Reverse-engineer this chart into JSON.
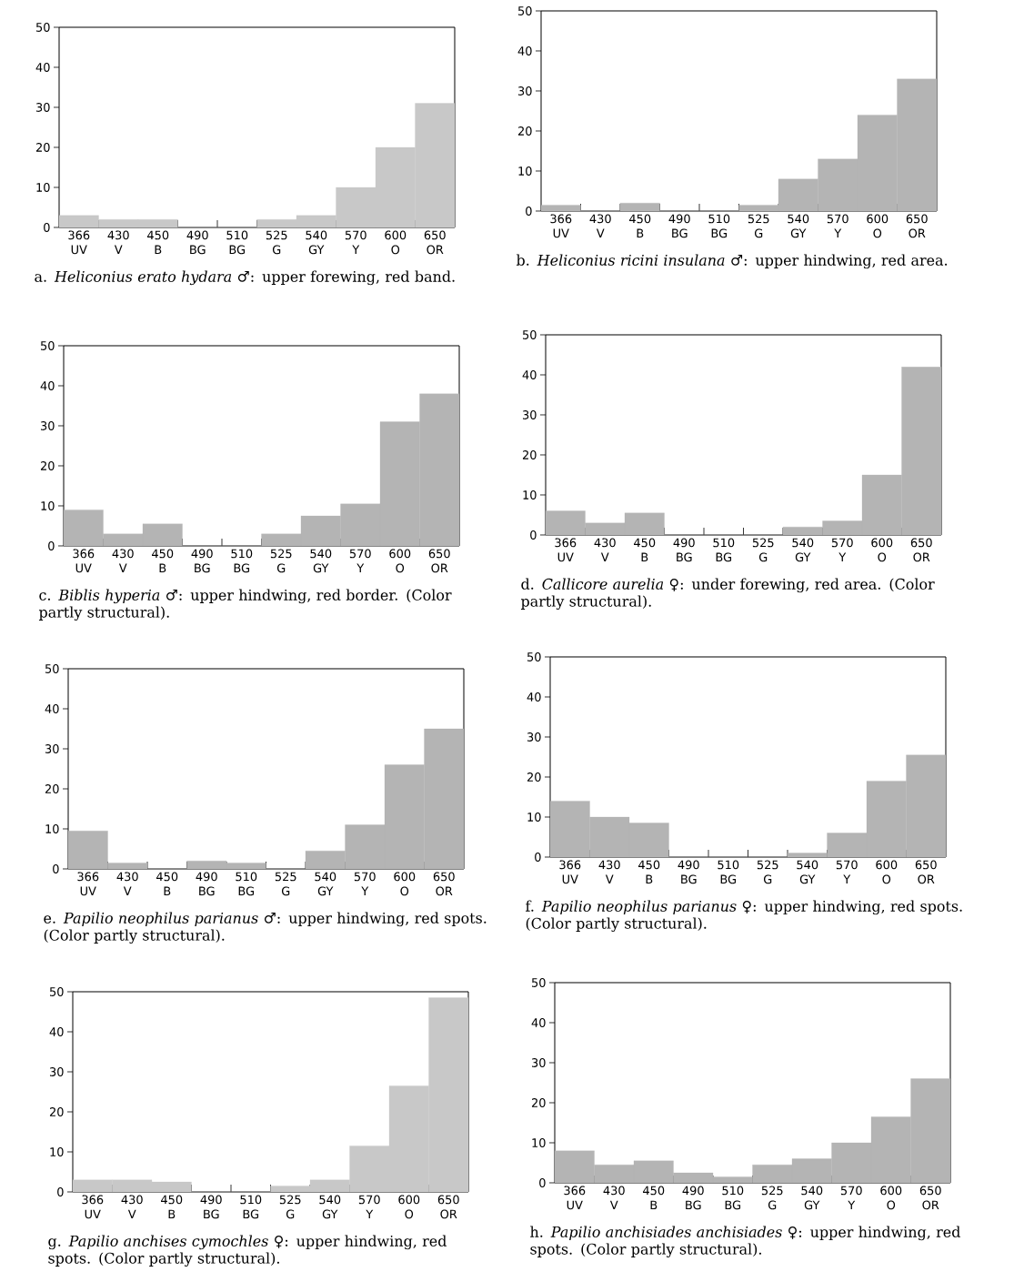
{
  "chart_data": [
    {
      "type": "bar",
      "title": "a. *Heliconius erato hydara* ♂: upper forewing, red band.",
      "categories": [
        "366 UV",
        "430 V",
        "450 B",
        "490 BG",
        "510 BG",
        "525 G",
        "540 GY",
        "570 Y",
        "600 O",
        "650 OR"
      ],
      "values": [
        3,
        2,
        2,
        0,
        0,
        2,
        3,
        10,
        20,
        31
      ],
      "color": "#c8c8c8",
      "ylim": [
        0,
        50
      ],
      "yticks": [
        0,
        10,
        20,
        30,
        40,
        50
      ]
    },
    {
      "type": "bar",
      "title": "b. *Heliconius ricini insulana* ♂: upper hindwing, red area.",
      "categories": [
        "366 UV",
        "430 V",
        "450 B",
        "490 BG",
        "510 BG",
        "525 G",
        "540 GY",
        "570 Y",
        "600 O",
        "650 OR"
      ],
      "values": [
        1.5,
        0,
        2,
        0,
        0,
        1.5,
        8,
        13,
        24,
        33
      ],
      "color": "#b4b4b4",
      "ylim": [
        0,
        50
      ],
      "yticks": [
        0,
        10,
        20,
        30,
        40,
        50
      ]
    },
    {
      "type": "bar",
      "title": "c. *Biblis hyperia* ♂: upper hindwing, red border. (Color partly structural).",
      "categories": [
        "366 UV",
        "430 V",
        "450 B",
        "490 BG",
        "510 BG",
        "525 G",
        "540 GY",
        "570 Y",
        "600 O",
        "650 OR"
      ],
      "values": [
        9,
        3,
        5.5,
        0,
        0,
        3,
        7.5,
        10.5,
        31,
        38
      ],
      "color": "#b4b4b4",
      "ylim": [
        0,
        50
      ],
      "yticks": [
        0,
        10,
        20,
        30,
        40,
        50
      ]
    },
    {
      "type": "bar",
      "title": "d. *Callicore aurelia* ♀: under forewing, red area. (Color partly structural).",
      "categories": [
        "366 UV",
        "430 V",
        "450 B",
        "490 BG",
        "510 BG",
        "525 G",
        "540 GY",
        "570 Y",
        "600 O",
        "650 OR"
      ],
      "values": [
        6,
        3,
        5.5,
        0,
        0,
        0,
        2,
        3.5,
        15,
        42
      ],
      "color": "#b4b4b4",
      "ylim": [
        0,
        50
      ],
      "yticks": [
        0,
        10,
        20,
        30,
        40,
        50
      ]
    },
    {
      "type": "bar",
      "title": "e. *Papilio neophilus parianus* ♂: upper hindwing, red spots. (Color partly structural).",
      "categories": [
        "366 UV",
        "430 V",
        "450 B",
        "490 BG",
        "510 BG",
        "525 G",
        "540 GY",
        "570 Y",
        "600 O",
        "650 OR"
      ],
      "values": [
        9.5,
        1.5,
        0,
        2,
        1.5,
        0,
        4.5,
        11,
        26,
        35
      ],
      "color": "#b4b4b4",
      "ylim": [
        0,
        50
      ],
      "yticks": [
        0,
        10,
        20,
        30,
        40,
        50
      ]
    },
    {
      "type": "bar",
      "title": "f. *Papilio neophilus parianus* ♀: upper hindwing, red spots. (Color partly structural).",
      "categories": [
        "366 UV",
        "430 V",
        "450 B",
        "490 BG",
        "510 BG",
        "525 G",
        "540 GY",
        "570 Y",
        "600 O",
        "650 OR"
      ],
      "values": [
        14,
        10,
        8.5,
        0,
        0,
        0,
        1,
        6,
        19,
        25.5
      ],
      "color": "#b4b4b4",
      "ylim": [
        0,
        50
      ],
      "yticks": [
        0,
        10,
        20,
        30,
        40,
        50
      ]
    },
    {
      "type": "bar",
      "title": "g. *Papilio anchises cymochles* ♀: upper hindwing, red spots. (Color partly structural).",
      "categories": [
        "366 UV",
        "430 V",
        "450 B",
        "490 BG",
        "510 BG",
        "525 G",
        "540 GY",
        "570 Y",
        "600 O",
        "650 OR"
      ],
      "values": [
        3,
        3,
        2.5,
        0,
        0,
        1.5,
        3,
        11.5,
        26.5,
        48.5
      ],
      "color": "#c8c8c8",
      "ylim": [
        0,
        50
      ],
      "yticks": [
        0,
        10,
        20,
        30,
        40,
        50
      ]
    },
    {
      "type": "bar",
      "title": "h. *Papilio anchisiades anchisiades* ♀: upper hindwing, red spots. (Color partly structural).",
      "categories": [
        "366 UV",
        "430 V",
        "450 B",
        "490 BG",
        "510 BG",
        "525 G",
        "540 GY",
        "570 Y",
        "600 O",
        "650 OR"
      ],
      "values": [
        8,
        4.5,
        5.5,
        2.5,
        1.5,
        4.5,
        6,
        10,
        16.5,
        26
      ],
      "color": "#b4b4b4",
      "ylim": [
        0,
        50
      ],
      "yticks": [
        0,
        10,
        20,
        30,
        40,
        50
      ]
    }
  ]
}
